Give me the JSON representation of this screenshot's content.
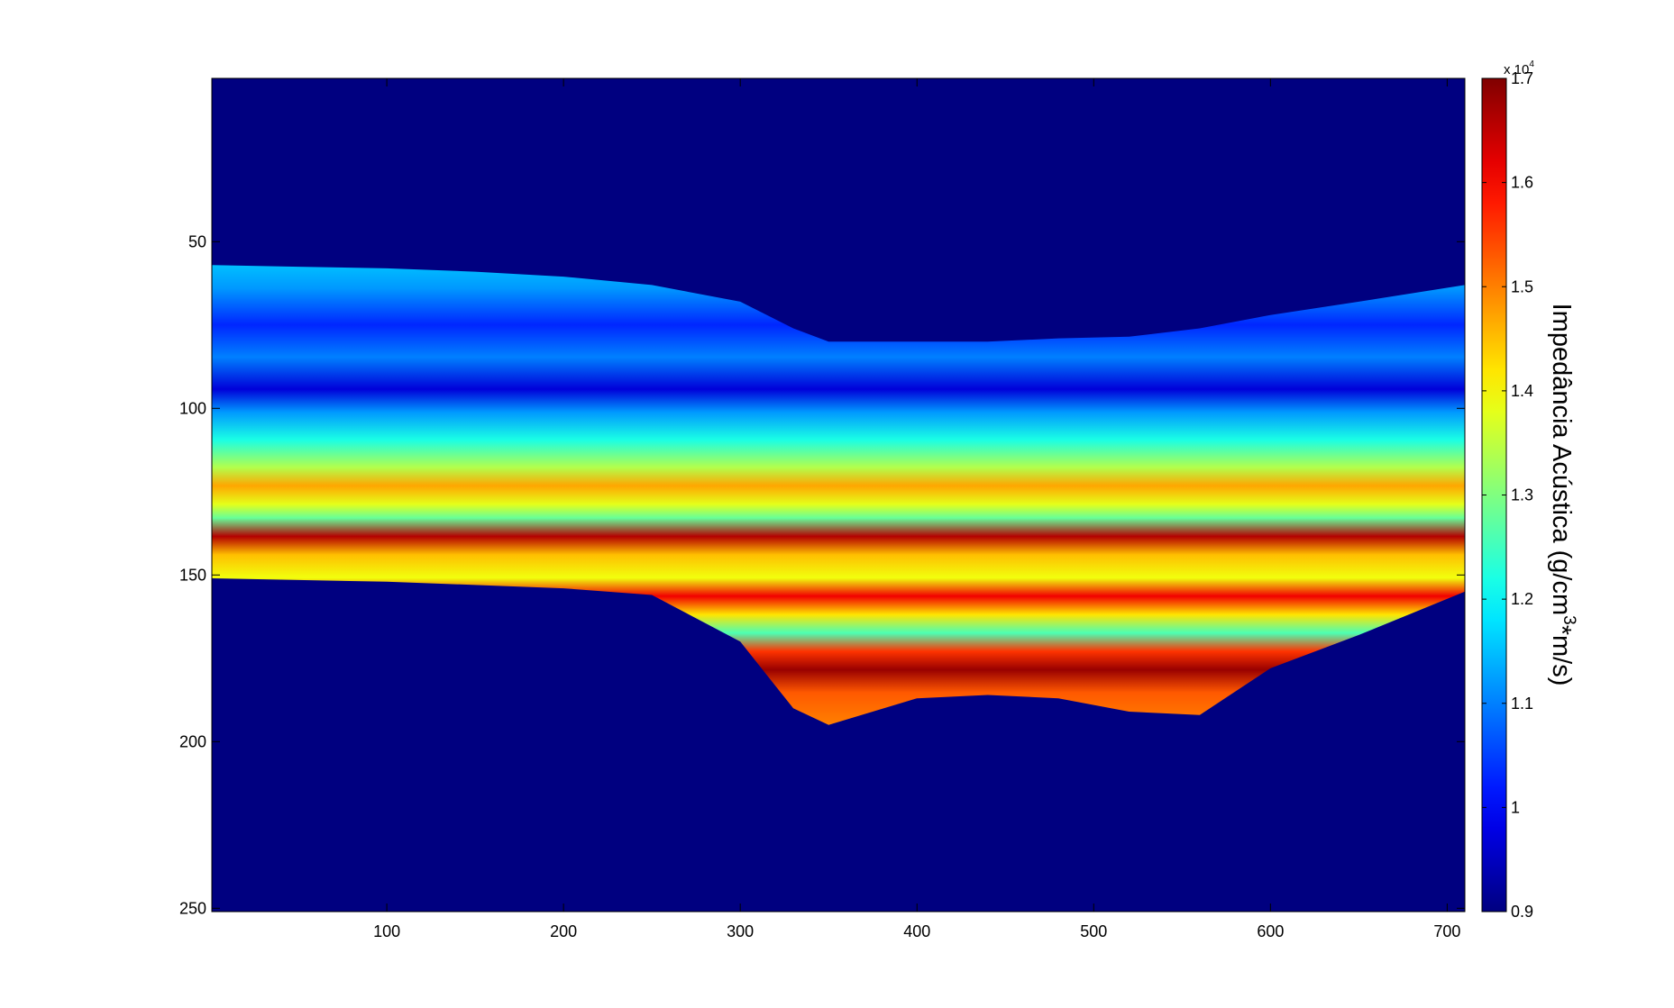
{
  "chart_data": {
    "type": "heatmap",
    "title": "",
    "xlabel": "",
    "ylabel": "",
    "xlim": [
      1,
      710
    ],
    "ylim": [
      1,
      251
    ],
    "y_reversed": true,
    "x_ticks": [
      100,
      200,
      300,
      400,
      500,
      600,
      700
    ],
    "y_ticks": [
      50,
      100,
      150,
      200,
      250
    ],
    "x_tick_labels": [
      "100",
      "200",
      "300",
      "400",
      "500",
      "600",
      "700"
    ],
    "y_tick_labels": [
      "50",
      "100",
      "150",
      "200",
      "250"
    ],
    "colormap": "jet",
    "background_value": 9000,
    "colorbar": {
      "label": "Impedância Acústica (g/cm³*m/s)",
      "label_main": "Impedância Acústica (g/cm",
      "label_sup": "3",
      "label_end": "*m/s)",
      "multiplier_text": "x 10",
      "multiplier_exp": "4",
      "range": [
        0.9,
        1.7
      ],
      "ticks": [
        0.9,
        1,
        1.1,
        1.2,
        1.3,
        1.4,
        1.5,
        1.6,
        1.7
      ],
      "tick_labels": [
        "0.9",
        "1",
        "1.1",
        "1.2",
        "1.3",
        "1.4",
        "1.5",
        "1.6",
        "1.7"
      ]
    },
    "boundaries": {
      "x": [
        1,
        50,
        100,
        150,
        200,
        250,
        300,
        330,
        350,
        400,
        440,
        480,
        520,
        560,
        600,
        650,
        710
      ],
      "top": [
        57,
        57.5,
        58,
        59,
        60.5,
        63,
        68,
        76,
        80,
        80,
        80,
        79,
        78.5,
        76,
        72,
        68,
        63
      ],
      "bottom": [
        151,
        151.5,
        152,
        153,
        154,
        156,
        170,
        190,
        195,
        187,
        186,
        187,
        191,
        192,
        178,
        168,
        155
      ]
    },
    "layers": [
      {
        "offset": 0.0,
        "impedance": 11500
      },
      {
        "offset": 0.05,
        "impedance": 11200
      },
      {
        "offset": 0.13,
        "impedance": 10300
      },
      {
        "offset": 0.2,
        "impedance": 11000
      },
      {
        "offset": 0.27,
        "impedance": 9700
      },
      {
        "offset": 0.32,
        "impedance": 11200
      },
      {
        "offset": 0.38,
        "impedance": 12200
      },
      {
        "offset": 0.44,
        "impedance": 13400
      },
      {
        "offset": 0.48,
        "impedance": 14700
      },
      {
        "offset": 0.52,
        "impedance": 13800
      },
      {
        "offset": 0.55,
        "impedance": 12800
      },
      {
        "offset": 0.59,
        "impedance": 16600
      },
      {
        "offset": 0.63,
        "impedance": 14500
      },
      {
        "offset": 0.68,
        "impedance": 13900
      },
      {
        "offset": 0.72,
        "impedance": 16100
      },
      {
        "offset": 0.76,
        "impedance": 14200
      },
      {
        "offset": 0.8,
        "impedance": 12600
      },
      {
        "offset": 0.84,
        "impedance": 15600
      },
      {
        "offset": 0.88,
        "impedance": 16800
      },
      {
        "offset": 0.93,
        "impedance": 15300
      },
      {
        "offset": 1.0,
        "impedance": 15000
      }
    ]
  }
}
